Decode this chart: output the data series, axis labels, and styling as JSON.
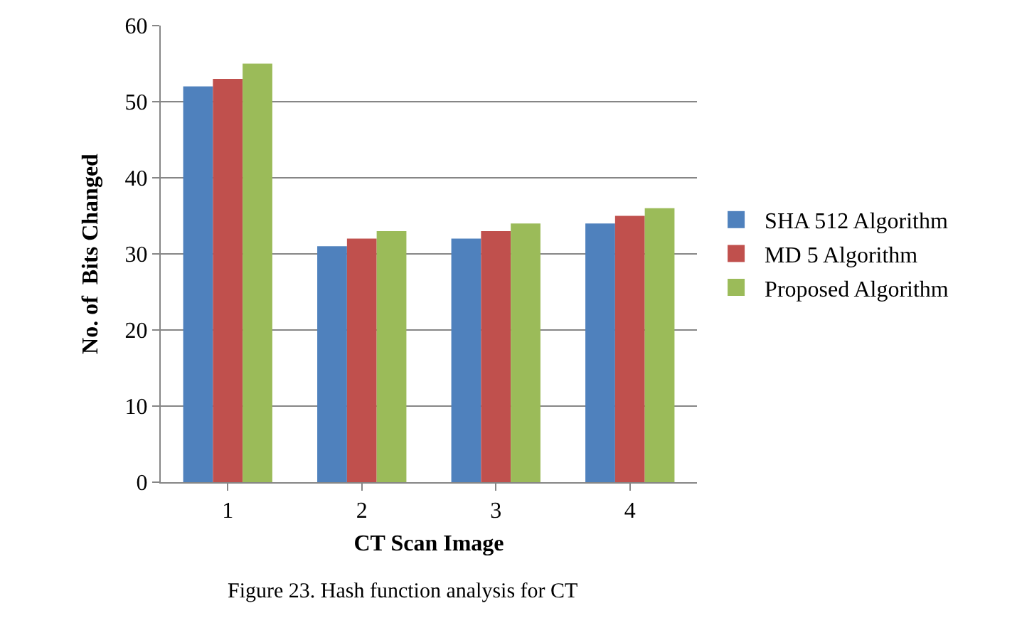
{
  "chart_data": {
    "type": "bar",
    "xlabel": "CT Scan Image",
    "ylabel": "No. of  Bits Changed",
    "categories": [
      "1",
      "2",
      "3",
      "4"
    ],
    "series": [
      {
        "name": "SHA 512 Algorithm",
        "color": "#4f81bd",
        "values": [
          52,
          31,
          32,
          34
        ]
      },
      {
        "name": "MD 5 Algorithm",
        "color": "#c0504d",
        "values": [
          53,
          32,
          33,
          35
        ]
      },
      {
        "name": "Proposed Algorithm",
        "color": "#9bbb59",
        "values": [
          55,
          33,
          34,
          36
        ]
      }
    ],
    "ylim": [
      0,
      60
    ],
    "yticks": [
      0,
      10,
      20,
      30,
      40,
      50,
      60
    ],
    "grid": "y",
    "legend": "right",
    "annotations": [
      "Figure 23. Hash function analysis for CT"
    ]
  }
}
